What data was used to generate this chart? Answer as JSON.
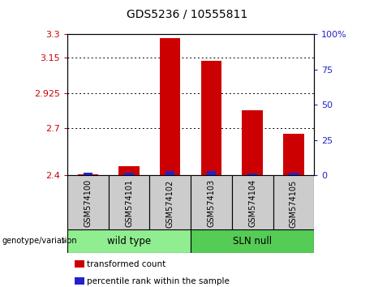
{
  "title": "GDS5236 / 10555811",
  "samples": [
    "GSM574100",
    "GSM574101",
    "GSM574102",
    "GSM574103",
    "GSM574104",
    "GSM574105"
  ],
  "red_values": [
    2.405,
    2.455,
    3.275,
    3.13,
    2.815,
    2.665
  ],
  "blue_values": [
    2.415,
    2.415,
    2.425,
    2.425,
    2.41,
    2.415
  ],
  "ylim_left": [
    2.4,
    3.3
  ],
  "yticks_left": [
    2.4,
    2.7,
    2.925,
    3.15,
    3.3
  ],
  "ytick_labels_left": [
    "2.4",
    "2.7",
    "2.925",
    "3.15",
    "3.3"
  ],
  "ylim_right": [
    0,
    100
  ],
  "yticks_right": [
    0,
    25,
    50,
    75,
    100
  ],
  "ytick_labels_right": [
    "0",
    "25",
    "50",
    "75",
    "100%"
  ],
  "grid_ticks": [
    2.7,
    2.925,
    3.15
  ],
  "bar_bottom": 2.4,
  "bar_width": 0.5,
  "red_color": "#cc0000",
  "blue_color": "#2222cc",
  "groups": [
    {
      "label": "wild type",
      "indices": [
        0,
        1,
        2
      ],
      "color": "#90ee90"
    },
    {
      "label": "SLN null",
      "indices": [
        3,
        4,
        5
      ],
      "color": "#55cc55"
    }
  ],
  "group_label": "genotype/variation",
  "legend_items": [
    {
      "color": "#cc0000",
      "label": "transformed count"
    },
    {
      "color": "#2222cc",
      "label": "percentile rank within the sample"
    }
  ],
  "sample_bg": "#cccccc",
  "left_tick_color": "#cc0000",
  "right_tick_color": "#2222cc",
  "title_fontsize": 10,
  "tick_fontsize": 8,
  "label_fontsize": 8
}
